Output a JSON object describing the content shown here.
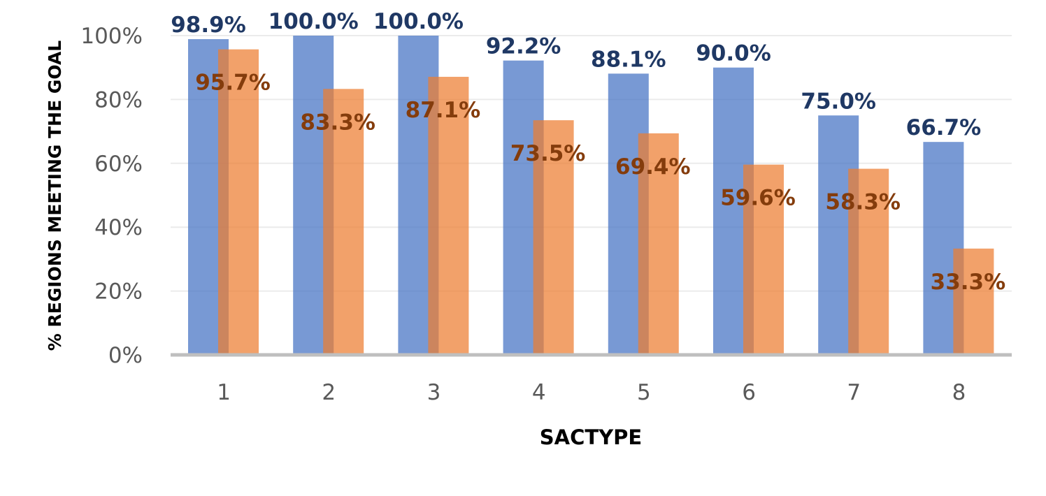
{
  "chart_data": {
    "type": "bar",
    "categories": [
      "1",
      "2",
      "3",
      "4",
      "5",
      "6",
      "7",
      "8"
    ],
    "series": [
      {
        "values": [
          98.9,
          100.0,
          100.0,
          92.2,
          88.1,
          90.0,
          75.0,
          66.7
        ],
        "labels": [
          "98.9%",
          "100.0%",
          "100.0%",
          "92.2%",
          "88.1%",
          "90.0%",
          "75.0%",
          "66.7%"
        ],
        "color": "#4472c4"
      },
      {
        "values": [
          95.7,
          83.3,
          87.1,
          73.5,
          69.4,
          59.6,
          58.3,
          33.3
        ],
        "labels": [
          "95.7%",
          "83.3%",
          "87.1%",
          "73.5%",
          "69.4%",
          "59.6%",
          "58.3%",
          "33.3%"
        ],
        "color": "#ed7d31"
      }
    ],
    "title": "",
    "xlabel": "SACTYPE",
    "ylabel": "% REGIONS MEETING THE GOAL",
    "ylim": [
      0,
      100
    ],
    "yticks": [
      "0%",
      "20%",
      "40%",
      "60%",
      "80%",
      "100%"
    ],
    "grid": true,
    "legend": "none",
    "series_label_colors": [
      "#1f3864",
      "#843c0c"
    ],
    "axis_color": "#bfbfbf",
    "grid_color": "#ebebeb"
  }
}
